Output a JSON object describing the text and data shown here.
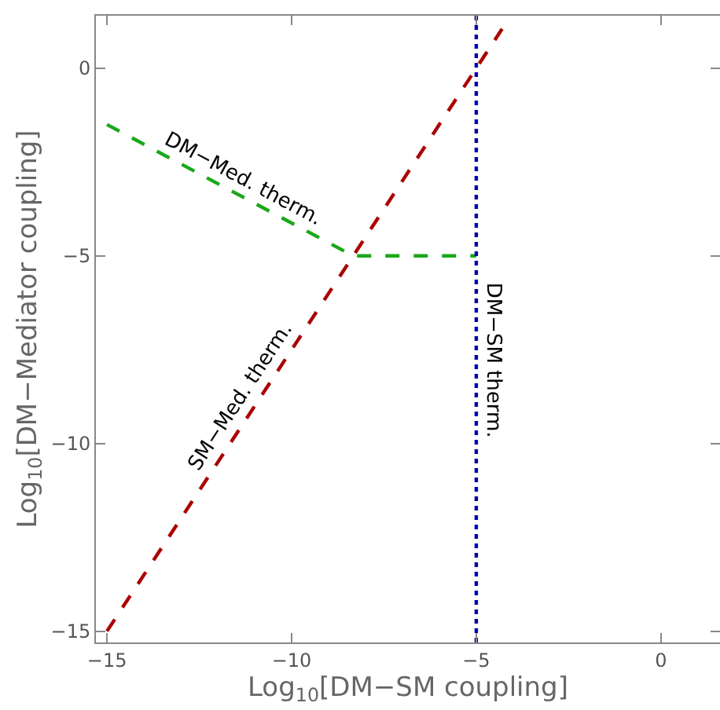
{
  "chart_data": {
    "type": "line",
    "xlabel": "Log$_{10}$[DM−SM coupling]",
    "ylabel": "Log$_{10}$[DM−Mediator coupling]",
    "xlim": [
      -15.3,
      1.6
    ],
    "ylim": [
      -15.3,
      1.4
    ],
    "xticks": [
      -15,
      -10,
      -5,
      0
    ],
    "yticks": [
      -15,
      -10,
      -5,
      0
    ],
    "marker": "none",
    "series": [
      {
        "color": "#aa0000",
        "line_style": "dashed",
        "x": [
          -15,
          -4.3
        ],
        "values": [
          -15,
          1.05
        ]
      },
      {
        "color": "#1aa81a",
        "line_style": "dashed",
        "x": [
          -15,
          -8.33,
          -5
        ],
        "values": [
          -1.5,
          -5,
          -5
        ]
      },
      {
        "color": "#0000aa",
        "line_style": "dotted",
        "x": [
          -5,
          -5
        ],
        "values": [
          -15.3,
          1.4
        ]
      }
    ],
    "annotations": [
      {
        "text": "DM−Med. therm.",
        "x": -11.5,
        "y": -3.34
      },
      {
        "text": "SM−Med. therm.",
        "x": -11,
        "y": -9
      },
      {
        "text": "DM−SM therm.",
        "x": -5,
        "y": -7.8
      }
    ]
  }
}
